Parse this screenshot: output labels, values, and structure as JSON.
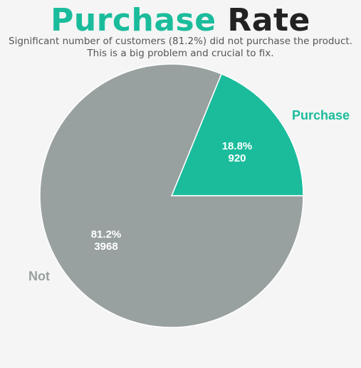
{
  "chart_data": {
    "type": "pie",
    "title_parts": [
      {
        "text": "Purchase",
        "color": "#1abc9c"
      },
      {
        "text": "Rate",
        "color": "#222222"
      }
    ],
    "subtitle": "Significant number of customers (81.2%) did not purchase the product. This is a big problem and crucial to fix.",
    "slices": [
      {
        "label": "Purchase",
        "value": 920,
        "percent": "18.8%",
        "count": "920",
        "color": "#1abc9c"
      },
      {
        "label": "Not",
        "value": 3968,
        "percent": "81.2%",
        "count": "3968",
        "color": "#98a1a0"
      }
    ],
    "start_angle_deg": 0,
    "direction": "counterclockwise"
  }
}
